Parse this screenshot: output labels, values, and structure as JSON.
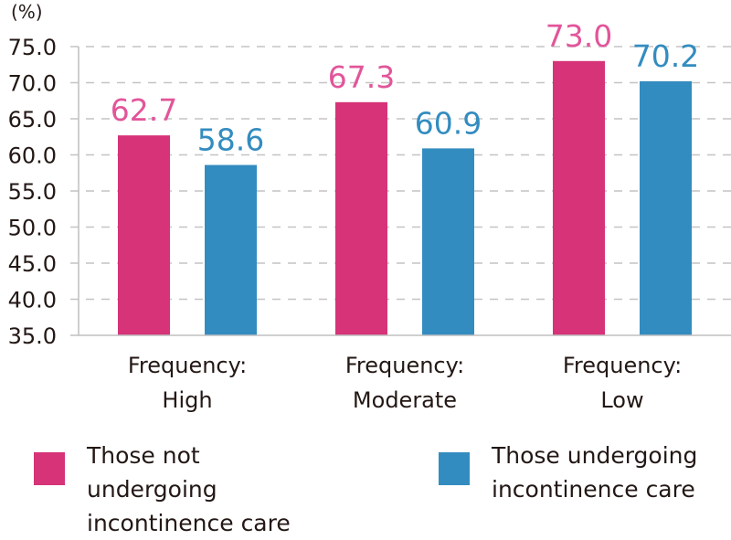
{
  "chart_data": {
    "type": "bar",
    "unit_label": "(%)",
    "categories": [
      {
        "line1": "Frequency:",
        "line2": "High"
      },
      {
        "line1": "Frequency:",
        "line2": "Moderate"
      },
      {
        "line1": "Frequency:",
        "line2": "Low"
      }
    ],
    "series": [
      {
        "name": "Those not undergoing incontinence care",
        "name_line1": "Those not undergoing",
        "name_line2": "incontinence care",
        "color": "#d63378",
        "label_color": "#e2559a",
        "values": [
          62.7,
          67.3,
          73.0
        ]
      },
      {
        "name": "Those undergoing incontinence care",
        "name_line1": "Those undergoing",
        "name_line2": "incontinence care",
        "color": "#338cc0",
        "label_color": "#338cc0",
        "values": [
          58.6,
          60.9,
          70.2
        ]
      }
    ],
    "ylim": [
      35.0,
      75.0
    ],
    "yticks": [
      "35.0",
      "40.0",
      "45.0",
      "50.0",
      "55.0",
      "60.0",
      "65.0",
      "70.0",
      "75.0"
    ],
    "grid": true,
    "legend_position": "bottom"
  }
}
